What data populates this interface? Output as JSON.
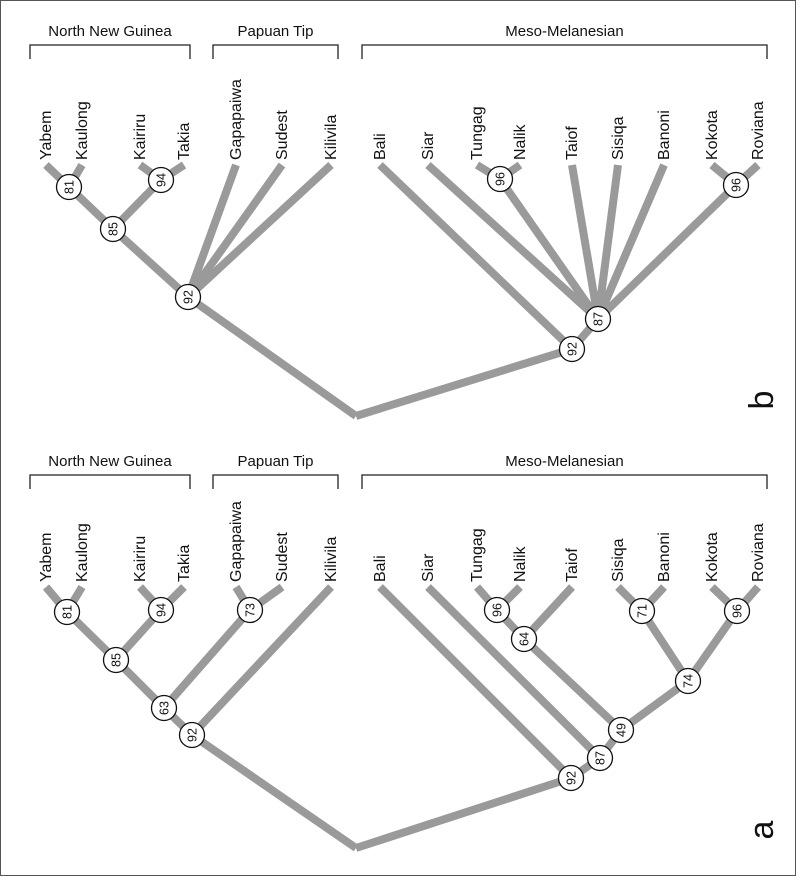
{
  "panels": [
    {
      "letter": "b",
      "groups": [
        {
          "label": "North New Guinea"
        },
        {
          "label": "Papuan Tip"
        },
        {
          "label": "Meso-Melanesian"
        }
      ],
      "taxa": [
        "Yabem",
        "Kaulong",
        "Kairiru",
        "Takia",
        "Gapapaiwa",
        "Sudest",
        "Kilivila",
        "Bali",
        "Siar",
        "Tungag",
        "Nalik",
        "Taiof",
        "Sisiqa",
        "Banoni",
        "Kokota",
        "Roviana"
      ],
      "support_values": [
        "81",
        "94",
        "85",
        "92",
        "96",
        "96",
        "87",
        "92"
      ]
    },
    {
      "letter": "a",
      "groups": [
        {
          "label": "North New Guinea"
        },
        {
          "label": "Papuan Tip"
        },
        {
          "label": "Meso-Melanesian"
        }
      ],
      "taxa": [
        "Yabem",
        "Kaulong",
        "Kairiru",
        "Takia",
        "Gapapaiwa",
        "Sudest",
        "Kilivila",
        "Bali",
        "Siar",
        "Tungag",
        "Nalik",
        "Taiof",
        "Sisiqa",
        "Banoni",
        "Kokota",
        "Roviana"
      ],
      "support_values": [
        "81",
        "94",
        "85",
        "73",
        "63",
        "92",
        "96",
        "64",
        "71",
        "96",
        "74",
        "49",
        "87",
        "92"
      ]
    }
  ]
}
